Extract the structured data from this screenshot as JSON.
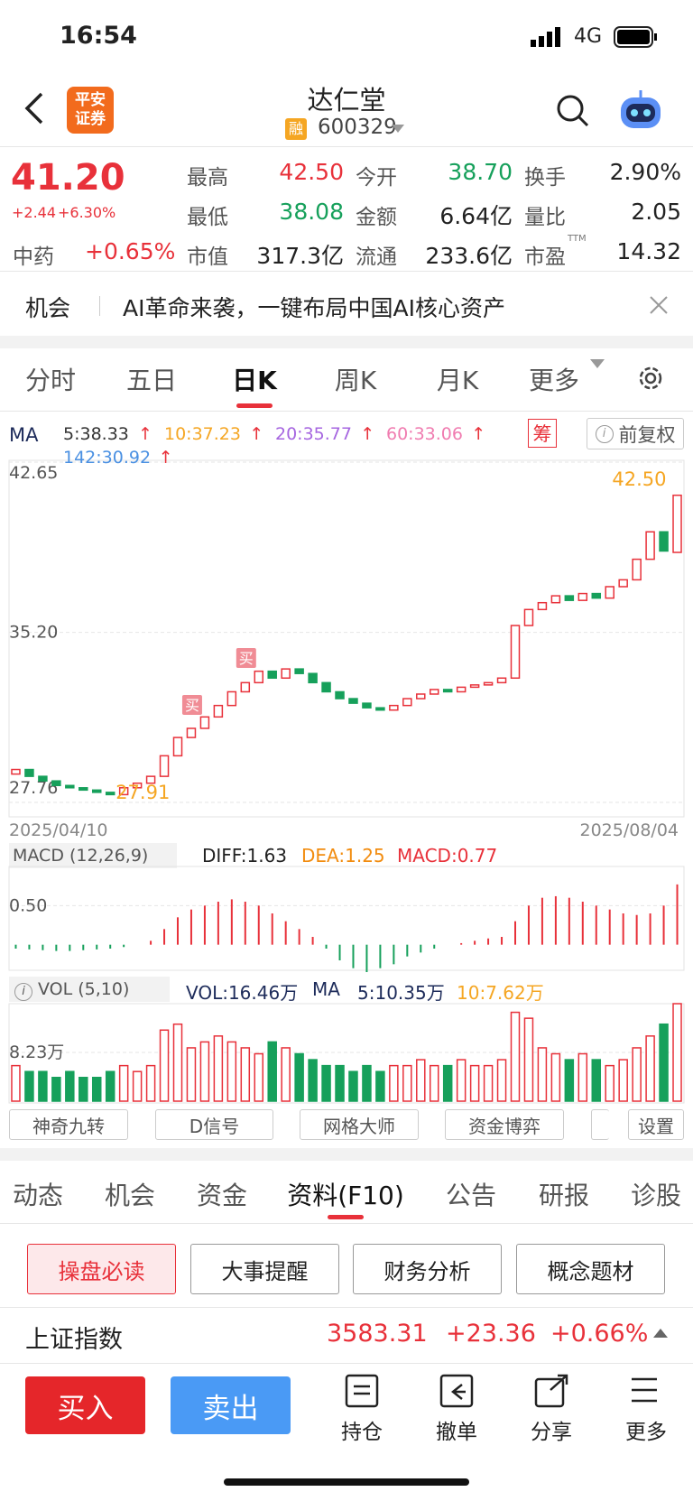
{
  "status_bar": {
    "time": "16:54",
    "network": "4G"
  },
  "header": {
    "logo_lines": [
      "平安",
      "证券"
    ],
    "title": "达仁堂",
    "badge": "融",
    "code": "600329"
  },
  "quote": {
    "price": "41.20",
    "change": "+2.44",
    "change_pct": "+6.30%",
    "sector": "中药",
    "sector_change": "+0.65%",
    "fields": [
      [
        {
          "label": "最高",
          "value": "42.50"
        },
        {
          "label": "今开",
          "value": "38.70"
        },
        {
          "label": "换手",
          "value": "2.90%"
        }
      ],
      [
        {
          "label": "最低",
          "value": "38.08"
        },
        {
          "label": "金额",
          "value": "6.64亿"
        },
        {
          "label": "量比",
          "value": "2.05"
        }
      ],
      [
        {
          "label": "市值",
          "value": "317.3亿"
        },
        {
          "label": "流通",
          "value": "233.6亿"
        },
        {
          "label": "市盈",
          "sup": "TTM",
          "value": "14.32"
        }
      ]
    ]
  },
  "banner": {
    "tag": "机会",
    "text": "AI革命来袭，一键布局中国AI核心资产"
  },
  "period_tabs": [
    "分时",
    "五日",
    "日K",
    "周K",
    "月K",
    "更多"
  ],
  "ma_legend": {
    "title": "MA",
    "items": [
      {
        "label": "5:38.33",
        "trend": "↑"
      },
      {
        "label": "10:37.23",
        "trend": "↑"
      },
      {
        "label": "20:35.77",
        "trend": "↑"
      },
      {
        "label": "60:33.06",
        "trend": "↑"
      },
      {
        "label": "142:30.92",
        "trend": "↑"
      }
    ],
    "chip": "筹",
    "adjust": "前复权",
    "info": "i"
  },
  "macd_legend": {
    "title": "MACD (12,26,9)",
    "diff": "DIFF:1.63",
    "dea": "DEA:1.25",
    "macd": "MACD:0.77"
  },
  "vol_legend": {
    "info": "i",
    "title": "VOL (5,10)",
    "vol": "VOL:16.46万",
    "ma": "MA",
    "ma5": "5:10.35万",
    "ma10": "10:7.62万"
  },
  "chart_data": [
    {
      "type": "candlestick",
      "categories": [
        "2025/04/10",
        null,
        null,
        null,
        null,
        null,
        null,
        null,
        null,
        null,
        null,
        null,
        null,
        null,
        null,
        null,
        null,
        null,
        null,
        null,
        null,
        null,
        null,
        null,
        null,
        null,
        null,
        null,
        null,
        null,
        null,
        null,
        null,
        null,
        null,
        null,
        null,
        null,
        null,
        null,
        null,
        null,
        null,
        null,
        null,
        null,
        null,
        null,
        null,
        "2025/08/04"
      ],
      "open": [
        29.0,
        29.2,
        28.9,
        28.7,
        28.5,
        28.4,
        28.3,
        28.2,
        28.1,
        28.4,
        28.6,
        28.9,
        29.8,
        30.6,
        31.0,
        31.5,
        32.0,
        32.6,
        33.0,
        33.5,
        33.2,
        33.6,
        33.4,
        33.0,
        32.6,
        32.3,
        32.1,
        31.9,
        31.8,
        32.0,
        32.3,
        32.5,
        32.7,
        32.6,
        32.8,
        32.9,
        33.0,
        33.2,
        35.5,
        36.2,
        36.5,
        36.8,
        36.6,
        36.9,
        36.7,
        37.2,
        37.5,
        38.4,
        39.6,
        38.7
      ],
      "close": [
        29.2,
        28.9,
        28.7,
        28.5,
        28.4,
        28.3,
        28.2,
        28.1,
        28.4,
        28.6,
        28.9,
        29.8,
        30.6,
        31.0,
        31.5,
        32.0,
        32.6,
        33.0,
        33.5,
        33.2,
        33.6,
        33.4,
        33.0,
        32.6,
        32.3,
        32.1,
        31.9,
        31.8,
        32.0,
        32.3,
        32.5,
        32.7,
        32.6,
        32.8,
        32.9,
        33.0,
        33.2,
        35.5,
        36.2,
        36.5,
        36.8,
        36.6,
        36.9,
        36.7,
        37.2,
        37.5,
        38.4,
        39.6,
        38.76,
        41.2
      ],
      "ylim": [
        27.76,
        42.65
      ],
      "yticks": [
        42.65,
        {
          "value": 35.2,
          "label": "35.20"
        },
        27.76
      ],
      "annotations": [
        {
          "text": "42.50",
          "value": 42.5,
          "index": 49
        },
        {
          "text": "27.91",
          "value": 27.91,
          "index": 7
        }
      ],
      "signals": [
        {
          "text": "买",
          "index": 13
        },
        {
          "text": "买",
          "index": 17
        }
      ]
    },
    {
      "type": "bar",
      "name": "MACD",
      "values": [
        -0.05,
        -0.06,
        -0.07,
        -0.08,
        -0.08,
        -0.07,
        -0.06,
        -0.05,
        -0.03,
        0.0,
        0.05,
        0.2,
        0.35,
        0.45,
        0.5,
        0.55,
        0.58,
        0.55,
        0.5,
        0.4,
        0.3,
        0.2,
        0.1,
        -0.05,
        -0.2,
        -0.3,
        -0.35,
        -0.3,
        -0.25,
        -0.15,
        -0.1,
        -0.05,
        0.0,
        0.02,
        0.05,
        0.08,
        0.1,
        0.3,
        0.5,
        0.6,
        0.62,
        0.6,
        0.55,
        0.5,
        0.45,
        0.4,
        0.38,
        0.4,
        0.5,
        0.77
      ],
      "ylim": [
        -0.5,
        1.0
      ],
      "yticks": [
        {
          "value": 0.5,
          "label": "0.50"
        }
      ]
    },
    {
      "type": "bar",
      "name": "VOL",
      "values": [
        6,
        5,
        5,
        4,
        5,
        4,
        4,
        5,
        6,
        5,
        6,
        12,
        13,
        9,
        10,
        11,
        10,
        9,
        8,
        10,
        9,
        8,
        7,
        6,
        6,
        5,
        6,
        5,
        6,
        6,
        7,
        6,
        6,
        7,
        6,
        6,
        7,
        15,
        14,
        9,
        8,
        7,
        8,
        7,
        6,
        7,
        9,
        11,
        13,
        16.46
      ],
      "ylim": [
        0,
        16.46
      ],
      "yticks": [
        {
          "value": 8.23,
          "label": "8.23万"
        }
      ]
    }
  ],
  "indicator_buttons": [
    "神奇九转",
    "D信号",
    "网格大师",
    "资金博弈",
    "设置"
  ],
  "f10_tabs": [
    "动态",
    "机会",
    "资金",
    "资料(F10)",
    "公告",
    "研报",
    "诊股"
  ],
  "sub_buttons": [
    "操盘必读",
    "大事提醒",
    "财务分析",
    "概念题材"
  ],
  "index_row": {
    "name": "上证指数",
    "price": "3583.31",
    "change": "+23.36",
    "pct": "+0.66%"
  },
  "bottom_bar": {
    "buy": "买入",
    "sell": "卖出",
    "actions": [
      "持仓",
      "撤单",
      "分享",
      "更多"
    ]
  }
}
